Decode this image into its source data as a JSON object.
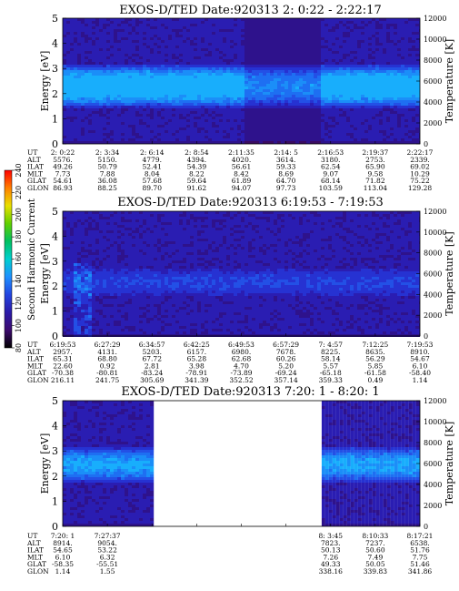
{
  "chart_data": [
    {
      "type": "heatmap",
      "title": "EXOS-D/TED  Date:920313  2: 0:22 - 2:22:17",
      "ylabel": "Energy [eV]",
      "y2label": "Temperature [K]",
      "ylim": [
        0,
        5
      ],
      "y2lim": [
        0,
        12000
      ],
      "yticks": [
        "0",
        "1",
        "2",
        "3",
        "4",
        "5"
      ],
      "y2ticks": [
        "0",
        "2000",
        "4000",
        "6000",
        "8000",
        "10000",
        "12000"
      ],
      "data_segments": [
        [
          0,
          1
        ]
      ],
      "band": {
        "center_eV": 2.35,
        "half_width_eV": 0.9,
        "strength": 0.95
      },
      "row_labels": [
        "UT",
        "ALT",
        "ILAT",
        "MLT",
        "GLAT",
        "GLON"
      ],
      "columns": [
        [
          "2: 0:22",
          "5576.",
          "49.26",
          "7.73",
          "54.61",
          "86.93"
        ],
        [
          "2: 3:34",
          "5150.",
          "50.79",
          "7.88",
          "36.08",
          "88.25"
        ],
        [
          "2: 6:14",
          "4779.",
          "52.41",
          "8.04",
          "57.68",
          "89.70"
        ],
        [
          "2: 8:54",
          "4394.",
          "54.39",
          "8.22",
          "59.64",
          "91.62"
        ],
        [
          "2:11:35",
          "4020.",
          "56.61",
          "8.42",
          "61.89",
          "94.07"
        ],
        [
          "2:14: 5",
          "3614.",
          "59.33",
          "8.69",
          "64.70",
          "97.73"
        ],
        [
          "2:16:53",
          "3180.",
          "62.54",
          "9.07",
          "68.14",
          "103.59"
        ],
        [
          "2:19:37",
          "2753.",
          "65.90",
          "9.58",
          "71.82",
          "113.04"
        ],
        [
          "2:22:17",
          "2339.",
          "69.02",
          "10.29",
          "75.22",
          "129.28"
        ]
      ]
    },
    {
      "type": "heatmap",
      "title": "EXOS-D/TED  Date:920313  6:19:53 - 7:19:53",
      "ylabel": "Energy [eV]",
      "y2label": "Temperature [K]",
      "ylim": [
        0,
        5
      ],
      "y2lim": [
        0,
        12000
      ],
      "yticks": [
        "0",
        "1",
        "2",
        "3",
        "4",
        "5"
      ],
      "y2ticks": [
        "0",
        "2000",
        "4000",
        "6000",
        "8000",
        "10000",
        "12000"
      ],
      "data_segments": [
        [
          0,
          1
        ]
      ],
      "band": {
        "center_eV": 2.2,
        "half_width_eV": 0.6,
        "strength": 0.25
      },
      "row_labels": [
        "UT",
        "ALT",
        "ILAT",
        "MLT",
        "GLAT",
        "GLON"
      ],
      "columns": [
        [
          "6:19:53",
          "2957.",
          "65.31",
          "22.60",
          "-70.38",
          "216.11"
        ],
        [
          "6:27:29",
          "4131.",
          "68.80",
          "0.92",
          "-80.81",
          "241.75"
        ],
        [
          "6:34:57",
          "5203.",
          "67.72",
          "2.81",
          "-83.24",
          "305.69"
        ],
        [
          "6:42:25",
          "6157.",
          "65.28",
          "3.98",
          "-78.91",
          "341.39"
        ],
        [
          "6:49:53",
          "6980.",
          "62.68",
          "4.70",
          "-73.89",
          "352.52"
        ],
        [
          "6:57:29",
          "7678.",
          "60.26",
          "5.20",
          "-69.24",
          "357.14"
        ],
        [
          "7: 4:57",
          "8225.",
          "58.14",
          "5.57",
          "-65.18",
          "359.33"
        ],
        [
          "7:12:25",
          "8635.",
          "56.29",
          "5.85",
          "-61.58",
          "0.49"
        ],
        [
          "7:19:53",
          "8910.",
          "54.67",
          "6.10",
          "-58.40",
          "1.14"
        ]
      ]
    },
    {
      "type": "heatmap",
      "title": "EXOS-D/TED  Date:920313  7:20: 1 - 8:20: 1",
      "ylabel": "Energy [eV]",
      "y2label": "Temperature [K]",
      "ylim": [
        0,
        5
      ],
      "y2lim": [
        0,
        12000
      ],
      "yticks": [
        "0",
        "1",
        "2",
        "3",
        "4",
        "5"
      ],
      "y2ticks": [
        "0",
        "2000",
        "4000",
        "6000",
        "8000",
        "10000",
        "12000"
      ],
      "data_segments": [
        [
          0,
          0.255
        ],
        [
          0.725,
          1
        ]
      ],
      "band": {
        "center_eV": 2.5,
        "half_width_eV": 0.75,
        "strength": 0.7
      },
      "row_labels": [
        "UT",
        "ALT",
        "ILAT",
        "MLT",
        "GLAT",
        "GLON"
      ],
      "columns": [
        [
          "7:20: 1",
          "8914.",
          "54.65",
          "6.10",
          "-58.35",
          "1.14"
        ],
        [
          "7:27:37",
          "9054.",
          "53.22",
          "6.32",
          "-55.51",
          "1.55"
        ],
        [
          "",
          "",
          "",
          "",
          "",
          ""
        ],
        [
          "",
          "",
          "",
          "",
          "",
          ""
        ],
        [
          "",
          "",
          "",
          "",
          "",
          ""
        ],
        [
          "",
          "",
          "",
          "",
          "",
          ""
        ],
        [
          "8: 3:45",
          "7823.",
          "50.13",
          "7.26",
          "49.33",
          "338.16"
        ],
        [
          "8:10:33",
          "7237.",
          "50.60",
          "7.49",
          "50.05",
          "339.83"
        ],
        [
          "8:17:21",
          "6538.",
          "51.76",
          "7.75",
          "51.46",
          "341.86"
        ]
      ]
    }
  ],
  "colorbar": {
    "label": "Second Harmonic Current",
    "ticks": [
      "80",
      "100",
      "120",
      "140",
      "160",
      "180",
      "200",
      "220",
      "240"
    ],
    "colors": [
      "#000000",
      "#3c0a6e",
      "#2a1aa8",
      "#2244e0",
      "#1e90ff",
      "#00d0d0",
      "#00c060",
      "#60d000",
      "#e8e000",
      "#ff8000",
      "#ff0000"
    ]
  }
}
